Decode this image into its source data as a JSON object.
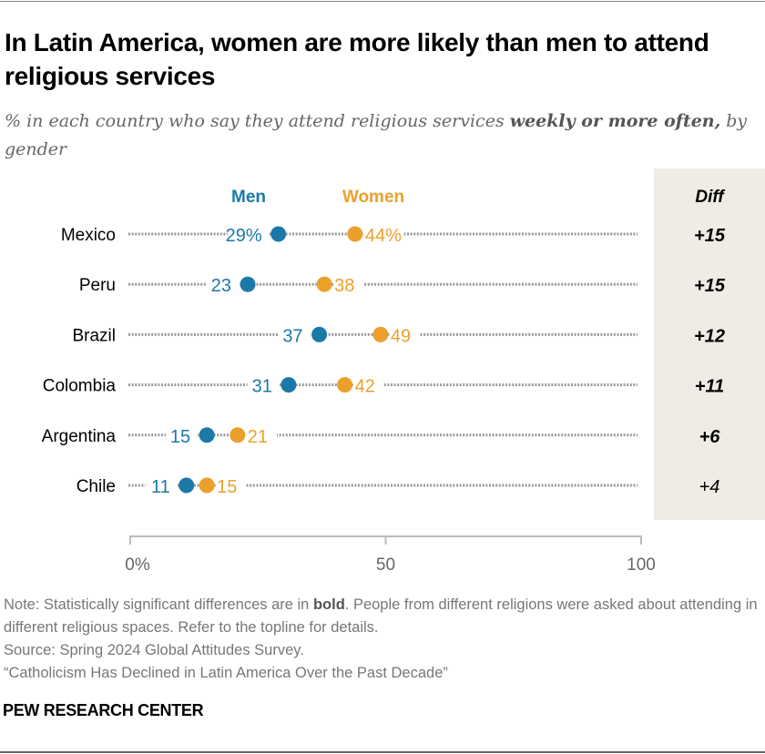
{
  "title": "In Latin America, women are more likely than men to attend religious services",
  "subtitle": {
    "pre": "% in each country who say they attend religious services ",
    "bold": "weekly or more often,",
    "post": " by gender"
  },
  "colors": {
    "men": "#1b79a8",
    "women": "#eca02c",
    "diff_panel": "#efece6",
    "dots": "#999999"
  },
  "chart_data": {
    "type": "dot",
    "title": "In Latin America, women are more likely than men to attend religious services",
    "categories": [
      "Mexico",
      "Peru",
      "Brazil",
      "Colombia",
      "Argentina",
      "Chile"
    ],
    "series": [
      {
        "name": "Men",
        "values": [
          29,
          23,
          37,
          31,
          15,
          11
        ]
      },
      {
        "name": "Women",
        "values": [
          44,
          38,
          49,
          42,
          21,
          15
        ]
      }
    ],
    "diff": {
      "header": "Diff",
      "values": [
        "+15",
        "+15",
        "+12",
        "+11",
        "+6",
        "+4"
      ],
      "bold": [
        true,
        true,
        true,
        true,
        true,
        false
      ]
    },
    "xlim": [
      0,
      100
    ],
    "xticks": [
      0,
      50,
      100
    ],
    "xtick_labels": [
      "0%",
      "50",
      "100"
    ],
    "first_row_suffix": "%"
  },
  "notes": {
    "note_pre": "Note: Statistically significant differences are in ",
    "note_bold": "bold",
    "note_post": ". People from different religions were asked about attending in different religious spaces. Refer to the topline for details.",
    "source": "Source: Spring 2024 Global Attitudes Survey.",
    "report": "“Catholicism Has Declined in Latin America Over the Past Decade”"
  },
  "brand": "PEW RESEARCH CENTER"
}
